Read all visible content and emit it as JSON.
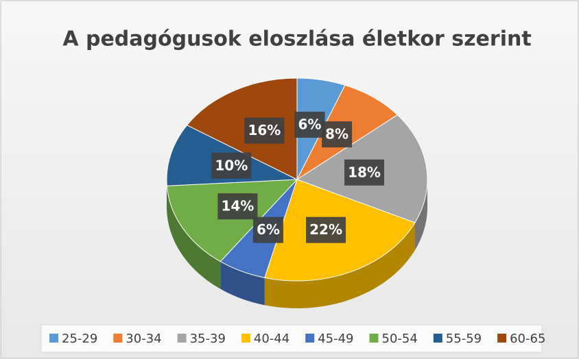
{
  "chart_data": {
    "type": "pie3d",
    "title": "A pedagógusok eloszlása életkor szerint",
    "categories": [
      "25-29",
      "30-34",
      "35-39",
      "40-44",
      "45-49",
      "50-54",
      "55-59",
      "60-65"
    ],
    "values": [
      6,
      8,
      18,
      22,
      6,
      14,
      10,
      16
    ],
    "value_labels": [
      "6%",
      "8%",
      "18%",
      "22%",
      "6%",
      "14%",
      "10%",
      "16%"
    ],
    "colors": [
      "#5b9bd5",
      "#ed7d31",
      "#a5a5a5",
      "#ffc000",
      "#4472c4",
      "#70ad47",
      "#255e91",
      "#9e480e"
    ],
    "legend": "bottom"
  }
}
